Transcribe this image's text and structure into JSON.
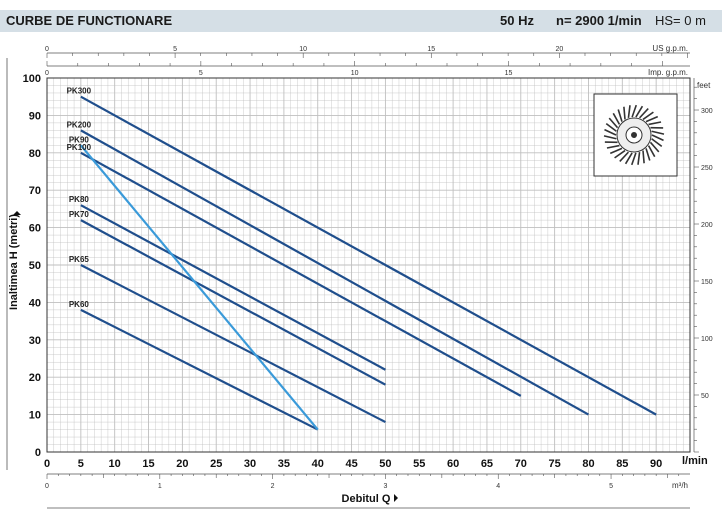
{
  "header": {
    "title": "CURBE DE FUNCTIONARE",
    "frequency": "50 Hz",
    "speed": "n= 2900  1/min",
    "hs": "HS= 0 m"
  },
  "colors": {
    "dark_curve": "#1f4e8c",
    "light_curve": "#3a9ad9",
    "grid": "#bfbfbf",
    "header_bg": "#d5dfe6"
  },
  "icon": "impeller-icon",
  "chart_data": {
    "type": "line",
    "xlabel": "Debitul Q",
    "ylabel": "Inaltimea H (metri)",
    "x_unit": "l/min",
    "xlim": [
      0,
      95
    ],
    "ylim": [
      0,
      100
    ],
    "x_ticks": [
      0,
      5,
      10,
      15,
      20,
      25,
      30,
      35,
      40,
      45,
      50,
      55,
      60,
      65,
      70,
      75,
      80,
      85,
      90
    ],
    "y_ticks": [
      0,
      10,
      20,
      30,
      40,
      50,
      60,
      70,
      80,
      90,
      100
    ],
    "grid": true,
    "secondary_axes": {
      "us_gpm": {
        "label": "US g.p.m.",
        "ticks": [
          0,
          5,
          10,
          15,
          20
        ]
      },
      "imp_gpm": {
        "label": "Imp. g.p.m.",
        "ticks": [
          0,
          5,
          10,
          15
        ]
      },
      "m3h": {
        "label": "m³/h",
        "ticks": [
          0,
          1,
          2,
          3,
          4,
          5
        ]
      },
      "feet": {
        "label": "feet",
        "ticks": [
          50,
          100,
          150,
          200,
          250,
          300
        ]
      }
    },
    "series": [
      {
        "name": "PK300",
        "x": [
          5,
          90
        ],
        "y": [
          95,
          10
        ]
      },
      {
        "name": "PK200",
        "x": [
          5,
          80
        ],
        "y": [
          86,
          10
        ]
      },
      {
        "name": "PK100",
        "x": [
          5,
          70
        ],
        "y": [
          80,
          15
        ]
      },
      {
        "name": "PK80",
        "x": [
          5,
          50
        ],
        "y": [
          66,
          22
        ]
      },
      {
        "name": "PK70",
        "x": [
          5,
          50
        ],
        "y": [
          62,
          18
        ]
      },
      {
        "name": "PK65",
        "x": [
          5,
          50
        ],
        "y": [
          50,
          8
        ]
      },
      {
        "name": "PK60",
        "x": [
          5,
          40
        ],
        "y": [
          38,
          6
        ]
      },
      {
        "name": "PK90",
        "x": [
          5,
          40
        ],
        "y": [
          82,
          6
        ]
      }
    ]
  }
}
